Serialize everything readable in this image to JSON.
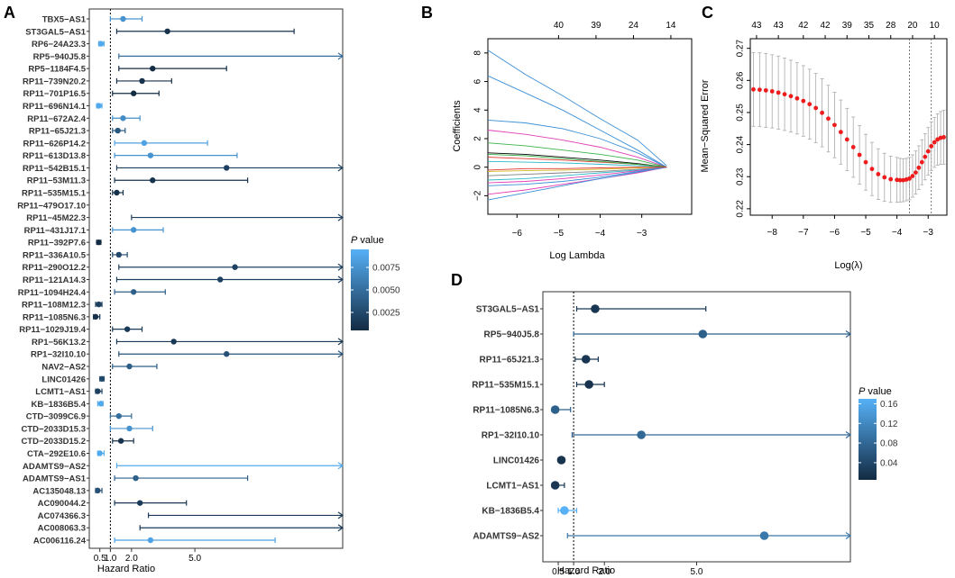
{
  "chart_data": [
    {
      "panel": "A",
      "type": "forest",
      "xlabel": "Hazard Ratio",
      "x_ticks": [
        "0.5",
        "1.0",
        "2.0",
        "5.0"
      ],
      "x_tick_values": [
        0.5,
        1.0,
        2.0,
        5.0
      ],
      "xlim": [
        0,
        12
      ],
      "reference_line": 1.0,
      "legend": {
        "title_italic": "P",
        "title_rest": " value",
        "ticks": [
          "0.0075",
          "0.0050",
          "0.0025"
        ],
        "tick_values": [
          0.0075,
          0.005,
          0.0025
        ],
        "range": [
          0.0005,
          0.0095
        ]
      },
      "rows": [
        {
          "label": "TBX5−AS1",
          "hr": 1.6,
          "lo": 1.0,
          "hi": 2.5,
          "p": 0.0075,
          "arrow": false
        },
        {
          "label": "ST3GAL5−AS1",
          "hr": 3.7,
          "lo": 1.3,
          "hi": 9.7,
          "p": 0.001,
          "arrow": false
        },
        {
          "label": "RP6−24A23.3",
          "hr": 0.55,
          "lo": 0.45,
          "hi": 0.7,
          "p": 0.009,
          "arrow": false
        },
        {
          "label": "RP5−940J5.8",
          "hr": 0,
          "lo": 1.4,
          "hi": 12,
          "p": 0.005,
          "arrow": true,
          "no_point": true
        },
        {
          "label": "RP5−1184F4.5",
          "hr": 3.0,
          "lo": 1.4,
          "hi": 6.5,
          "p": 0.0005,
          "arrow": false
        },
        {
          "label": "RP11−739N20.2",
          "hr": 2.5,
          "lo": 1.3,
          "hi": 3.9,
          "p": 0.001,
          "arrow": false
        },
        {
          "label": "RP11−701P16.5",
          "hr": 2.1,
          "lo": 1.1,
          "hi": 3.3,
          "p": 0.0005,
          "arrow": false
        },
        {
          "label": "RP11−696N14.1",
          "hr": 0.45,
          "lo": 0.35,
          "hi": 0.6,
          "p": 0.009,
          "arrow": false
        },
        {
          "label": "RP11−672A2.4",
          "hr": 1.6,
          "lo": 1.1,
          "hi": 2.4,
          "p": 0.007,
          "arrow": false
        },
        {
          "label": "RP11−65J21.3",
          "hr": 1.35,
          "lo": 1.1,
          "hi": 1.7,
          "p": 0.0035,
          "arrow": false
        },
        {
          "label": "RP11−626P14.2",
          "hr": 2.6,
          "lo": 1.2,
          "hi": 5.6,
          "p": 0.0085,
          "arrow": false
        },
        {
          "label": "RP11−613D13.8",
          "hr": 2.9,
          "lo": 1.2,
          "hi": 7.0,
          "p": 0.0075,
          "arrow": false
        },
        {
          "label": "RP11−542B15.1",
          "hr": 6.5,
          "lo": 1.3,
          "hi": 12,
          "p": 0.002,
          "arrow": true
        },
        {
          "label": "RP11−53M11.3",
          "hr": 3.0,
          "lo": 1.2,
          "hi": 7.5,
          "p": 0.001,
          "arrow": false
        },
        {
          "label": "RP11−535M15.1",
          "hr": 1.3,
          "lo": 1.1,
          "hi": 1.6,
          "p": 0.001,
          "arrow": false
        },
        {
          "label": "RP11−479O17.10",
          "hr": 0,
          "lo": 0,
          "hi": 0,
          "p": 0.005,
          "arrow": false,
          "no_point": true,
          "no_line": true
        },
        {
          "label": "RP11−45M22.3",
          "hr": 0,
          "lo": 2.0,
          "hi": 12,
          "p": 0.002,
          "arrow": true,
          "no_point": true
        },
        {
          "label": "RP11−431J17.1",
          "hr": 2.1,
          "lo": 1.1,
          "hi": 3.5,
          "p": 0.0075,
          "arrow": false
        },
        {
          "label": "RP11−392P7.6",
          "hr": 0.45,
          "lo": 0.35,
          "hi": 0.55,
          "p": 0.0005,
          "arrow": false
        },
        {
          "label": "RP11−336A10.5",
          "hr": 1.4,
          "lo": 1.1,
          "hi": 1.8,
          "p": 0.0025,
          "arrow": false
        },
        {
          "label": "RP11−290O12.2",
          "hr": 6.9,
          "lo": 1.4,
          "hi": 12,
          "p": 0.002,
          "arrow": true
        },
        {
          "label": "RP11−121A14.3",
          "hr": 6.2,
          "lo": 1.3,
          "hi": 12,
          "p": 0.002,
          "arrow": true
        },
        {
          "label": "RP11−1094H24.4",
          "hr": 2.1,
          "lo": 1.2,
          "hi": 3.6,
          "p": 0.004,
          "arrow": false
        },
        {
          "label": "RP11−108M12.3",
          "hr": 0.45,
          "lo": 0.3,
          "hi": 0.6,
          "p": 0.002,
          "arrow": false
        },
        {
          "label": "RP11−1085N6.3",
          "hr": 0.3,
          "lo": 0.2,
          "hi": 0.5,
          "p": 0.001,
          "arrow": false
        },
        {
          "label": "RP11−1029J19.4",
          "hr": 1.8,
          "lo": 1.1,
          "hi": 2.5,
          "p": 0.0015,
          "arrow": false
        },
        {
          "label": "RP1−56K13.2",
          "hr": 4.0,
          "lo": 1.3,
          "hi": 12,
          "p": 0.0015,
          "arrow": true
        },
        {
          "label": "RP1−32I10.10",
          "hr": 6.5,
          "lo": 1.4,
          "hi": 12,
          "p": 0.003,
          "arrow": true
        },
        {
          "label": "NAV2−AS2",
          "hr": 1.9,
          "lo": 1.1,
          "hi": 3.2,
          "p": 0.004,
          "arrow": false
        },
        {
          "label": "LINC01426",
          "hr": 0.6,
          "lo": 0.5,
          "hi": 0.7,
          "p": 0.0025,
          "arrow": false
        },
        {
          "label": "LCMT1−AS1",
          "hr": 0.4,
          "lo": 0.3,
          "hi": 0.6,
          "p": 0.002,
          "arrow": false
        },
        {
          "label": "KB−1836B5.4",
          "hr": 0.55,
          "lo": 0.4,
          "hi": 0.65,
          "p": 0.009,
          "arrow": false
        },
        {
          "label": "CTD−3099C6.9",
          "hr": 1.4,
          "lo": 1.0,
          "hi": 2.0,
          "p": 0.005,
          "arrow": false
        },
        {
          "label": "CTD−2033D15.3",
          "hr": 1.9,
          "lo": 1.0,
          "hi": 3.0,
          "p": 0.0075,
          "arrow": false
        },
        {
          "label": "CTD−2033D15.2",
          "hr": 1.5,
          "lo": 1.1,
          "hi": 2.1,
          "p": 0.001,
          "arrow": false
        },
        {
          "label": "CTA−292E10.6",
          "hr": 0.5,
          "lo": 0.4,
          "hi": 0.7,
          "p": 0.009,
          "arrow": false
        },
        {
          "label": "ADAMTS9−AS2",
          "hr": 0,
          "lo": 1.3,
          "hi": 12,
          "p": 0.009,
          "arrow": true,
          "no_point": true
        },
        {
          "label": "ADAMTS9−AS1",
          "hr": 2.2,
          "lo": 1.2,
          "hi": 7.5,
          "p": 0.004,
          "arrow": false
        },
        {
          "label": "AC135048.13",
          "hr": 0.4,
          "lo": 0.3,
          "hi": 0.6,
          "p": 0.003,
          "arrow": false
        },
        {
          "label": "AC090044.2",
          "hr": 2.4,
          "lo": 1.2,
          "hi": 4.6,
          "p": 0.0015,
          "arrow": false
        },
        {
          "label": "AC074366.3",
          "hr": 0,
          "lo": 2.8,
          "hi": 12,
          "p": 0.0015,
          "arrow": true,
          "no_point": true
        },
        {
          "label": "AC008063.3",
          "hr": 0,
          "lo": 2.4,
          "hi": 12,
          "p": 0.0015,
          "arrow": true,
          "no_point": true
        },
        {
          "label": "AC006116.24",
          "hr": 2.9,
          "lo": 1.2,
          "hi": 8.8,
          "p": 0.0085,
          "arrow": false
        }
      ]
    },
    {
      "panel": "B",
      "type": "line",
      "title": "",
      "xlabel": "Log Lambda",
      "ylabel": "Coefficients",
      "x_ticks": [
        -6,
        -5,
        -4,
        -3
      ],
      "y_ticks": [
        -2,
        0,
        2,
        4,
        6,
        8
      ],
      "top_ticks": [
        {
          "x": -5.0,
          "label": "40"
        },
        {
          "x": -4.1,
          "label": "39"
        },
        {
          "x": -3.2,
          "label": "24"
        },
        {
          "x": -2.3,
          "label": "14"
        }
      ],
      "xlim": [
        -6.7,
        -1.8
      ],
      "ylim": [
        -3.3,
        9.0
      ],
      "series": [
        {
          "name": "c1",
          "color": "#3b8fd6",
          "values": [
            8.2,
            6.5,
            5.0,
            3.4,
            1.9,
            0.1
          ]
        },
        {
          "name": "c2",
          "color": "#3b8fd6",
          "values": [
            6.4,
            5.2,
            4.0,
            2.6,
            1.2,
            0
          ]
        },
        {
          "name": "c3",
          "color": "#3b8fd6",
          "values": [
            3.3,
            3.1,
            2.7,
            2.0,
            1.0,
            0
          ]
        },
        {
          "name": "c4",
          "color": "#e23fb4",
          "values": [
            2.6,
            2.3,
            1.9,
            1.4,
            0.7,
            0
          ]
        },
        {
          "name": "c5",
          "color": "#3bb34a",
          "values": [
            1.7,
            1.5,
            1.2,
            0.9,
            0.5,
            0
          ]
        },
        {
          "name": "c6",
          "color": "#000000",
          "values": [
            1.0,
            0.9,
            0.7,
            0.5,
            0.25,
            0
          ]
        },
        {
          "name": "c7",
          "color": "#e0342b",
          "values": [
            0.7,
            0.6,
            0.5,
            0.35,
            0.2,
            0
          ]
        },
        {
          "name": "c8",
          "color": "#2bb8c8",
          "values": [
            0.4,
            0.35,
            0.3,
            0.2,
            0.1,
            0
          ]
        },
        {
          "name": "c9",
          "color": "#d2b820",
          "values": [
            -0.3,
            -0.25,
            -0.2,
            -0.15,
            -0.05,
            0
          ]
        },
        {
          "name": "c10",
          "color": "#7f7f7f",
          "values": [
            -0.6,
            -0.5,
            -0.4,
            -0.3,
            -0.15,
            0
          ]
        },
        {
          "name": "c11",
          "color": "#2bb8c8",
          "values": [
            -0.9,
            -0.8,
            -0.6,
            -0.4,
            -0.2,
            0
          ]
        },
        {
          "name": "c12",
          "color": "#e23fb4",
          "values": [
            -1.1,
            -1.0,
            -0.8,
            -0.55,
            -0.25,
            0
          ]
        },
        {
          "name": "c13",
          "color": "#3b8fd6",
          "values": [
            -1.3,
            -1.2,
            -1.0,
            -0.7,
            -0.3,
            0
          ]
        },
        {
          "name": "c14",
          "color": "#e23fb4",
          "values": [
            -1.9,
            -1.6,
            -1.2,
            -0.8,
            -0.4,
            0
          ]
        },
        {
          "name": "c15",
          "color": "#3b8fd6",
          "values": [
            -2.3,
            -1.8,
            -1.3,
            -0.8,
            -0.35,
            0
          ]
        },
        {
          "name": "c16",
          "color": "#3bb34a",
          "values": [
            0.9,
            0.8,
            0.6,
            0.4,
            0.2,
            0
          ]
        },
        {
          "name": "c17",
          "color": "#e0342b",
          "values": [
            -0.2,
            -0.1,
            -0.1,
            -0.05,
            0,
            0
          ]
        }
      ],
      "x": [
        -6.7,
        -5.8,
        -4.9,
        -4.0,
        -3.1,
        -2.4
      ]
    },
    {
      "panel": "C",
      "type": "scatter",
      "xlabel": "Log(λ)",
      "ylabel": "Mean−Squared Error",
      "x_ticks": [
        -8,
        -7,
        -6,
        -5,
        -4,
        -3
      ],
      "y_ticks": [
        "0.22",
        "0.23",
        "0.24",
        "0.25",
        "0.26",
        "0.27"
      ],
      "y_tick_values": [
        0.22,
        0.23,
        0.24,
        0.25,
        0.26,
        0.27
      ],
      "top_ticks": [
        {
          "x": -8.5,
          "label": "43"
        },
        {
          "x": -7.8,
          "label": "43"
        },
        {
          "x": -7.0,
          "label": "42"
        },
        {
          "x": -6.3,
          "label": "42"
        },
        {
          "x": -5.6,
          "label": "39"
        },
        {
          "x": -4.9,
          "label": "35"
        },
        {
          "x": -4.2,
          "label": "28"
        },
        {
          "x": -3.5,
          "label": "20"
        },
        {
          "x": -2.8,
          "label": "10"
        }
      ],
      "xlim": [
        -8.7,
        -2.4
      ],
      "ylim": [
        0.218,
        0.273
      ],
      "vlines": [
        -3.6,
        -2.9
      ],
      "x": [
        -8.6,
        -8.4,
        -8.2,
        -8.0,
        -7.8,
        -7.6,
        -7.4,
        -7.2,
        -7.0,
        -6.8,
        -6.6,
        -6.4,
        -6.2,
        -6.0,
        -5.8,
        -5.6,
        -5.4,
        -5.2,
        -5.0,
        -4.8,
        -4.6,
        -4.4,
        -4.2,
        -4.0,
        -3.9,
        -3.8,
        -3.7,
        -3.6,
        -3.5,
        -3.4,
        -3.3,
        -3.2,
        -3.1,
        -3.0,
        -2.9,
        -2.8,
        -2.7,
        -2.6,
        -2.5
      ],
      "y": [
        0.2572,
        0.2571,
        0.2569,
        0.2566,
        0.2562,
        0.2557,
        0.2551,
        0.2544,
        0.2536,
        0.2526,
        0.2514,
        0.2499,
        0.2481,
        0.2461,
        0.2439,
        0.2416,
        0.2392,
        0.2368,
        0.2345,
        0.2324,
        0.2308,
        0.2298,
        0.2292,
        0.229,
        0.2289,
        0.2289,
        0.2291,
        0.2294,
        0.2302,
        0.2313,
        0.2328,
        0.2345,
        0.2362,
        0.2379,
        0.2395,
        0.2407,
        0.2416,
        0.2421,
        0.2423
      ],
      "err": [
        0.0115,
        0.0115,
        0.0115,
        0.0114,
        0.0114,
        0.0113,
        0.0112,
        0.0111,
        0.011,
        0.0109,
        0.0108,
        0.0106,
        0.0104,
        0.0102,
        0.01,
        0.0097,
        0.0094,
        0.0091,
        0.0087,
        0.0083,
        0.0079,
        0.0075,
        0.0072,
        0.007,
        0.0068,
        0.0067,
        0.0066,
        0.0066,
        0.0066,
        0.0067,
        0.0068,
        0.007,
        0.0072,
        0.0074,
        0.0076,
        0.0078,
        0.008,
        0.0082,
        0.0084
      ],
      "point_color": "#ee1c1c"
    },
    {
      "panel": "D",
      "type": "forest",
      "xlabel": "Hazard Ratio",
      "x_ticks": [
        "0.5",
        "1.0",
        "2.0",
        "5.0"
      ],
      "x_tick_values": [
        0.5,
        1.0,
        2.0,
        5.0
      ],
      "xlim": [
        0,
        10
      ],
      "reference_line": 1.0,
      "legend": {
        "title_italic": "P",
        "title_rest": " value",
        "ticks": [
          "0.16",
          "0.12",
          "0.08",
          "0.04"
        ],
        "tick_values": [
          0.16,
          0.12,
          0.08,
          0.04
        ],
        "range": [
          0.005,
          0.17
        ]
      },
      "rows": [
        {
          "label": "ST3GAL5−AS1",
          "hr": 1.7,
          "lo": 1.1,
          "hi": 5.3,
          "p": 0.02,
          "arrow": false
        },
        {
          "label": "RP5−940J5.8",
          "hr": 5.2,
          "lo": 1.0,
          "hi": 10,
          "p": 0.07,
          "arrow": true
        },
        {
          "label": "RP11−65J21.3",
          "hr": 1.4,
          "lo": 1.05,
          "hi": 1.8,
          "p": 0.02,
          "arrow": false
        },
        {
          "label": "RP11−535M15.1",
          "hr": 1.5,
          "lo": 1.1,
          "hi": 2.0,
          "p": 0.015,
          "arrow": false
        },
        {
          "label": "RP11−1085N6.3",
          "hr": 0.4,
          "lo": 0.3,
          "hi": 0.9,
          "p": 0.07,
          "arrow": false
        },
        {
          "label": "RP1−32I10.10",
          "hr": 3.2,
          "lo": 0.95,
          "hi": 10,
          "p": 0.08,
          "arrow": true
        },
        {
          "label": "LINC01426",
          "hr": 0.6,
          "lo": 0.5,
          "hi": 0.7,
          "p": 0.015,
          "arrow": false
        },
        {
          "label": "LCMT1−AS1",
          "hr": 0.4,
          "lo": 0.3,
          "hi": 0.7,
          "p": 0.02,
          "arrow": false
        },
        {
          "label": "KB−1836B5.4",
          "hr": 0.7,
          "lo": 0.5,
          "hi": 1.1,
          "p": 0.17,
          "arrow": false
        },
        {
          "label": "ADAMTS9−AS2",
          "hr": 7.2,
          "lo": 0.8,
          "hi": 10,
          "p": 0.1,
          "arrow": true
        }
      ]
    }
  ],
  "panel_labels": {
    "a": "A",
    "b": "B",
    "c": "C",
    "d": "D"
  },
  "colors": {
    "p_low": "#132b43",
    "p_high": "#56b1f7",
    "grey_err": "#aaaaaa"
  }
}
